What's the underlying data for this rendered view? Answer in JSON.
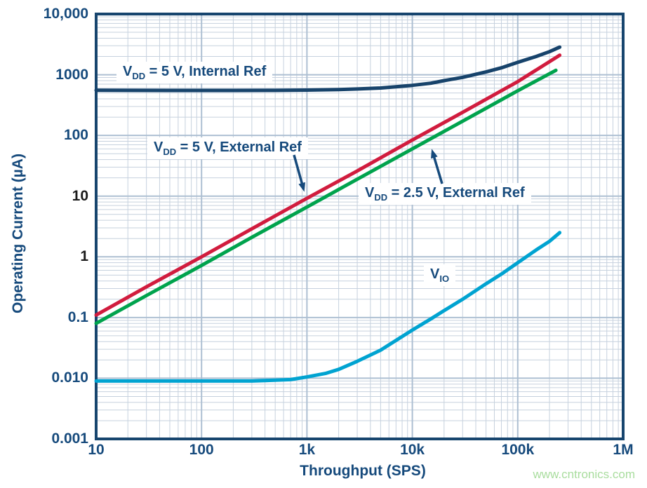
{
  "watermark": "www.cntronics.com",
  "colors": {
    "axis_text": "#164a7c",
    "black_tick": "#1a1a1a",
    "border": "#17456e",
    "grid_minor": "#c6d1de",
    "grid_major": "#adbfd2",
    "arrow": "#164a7c",
    "watermark": "#a9dd9e",
    "series_internal5": "#17436b",
    "series_external5": "#d11c3e",
    "series_external25": "#00a34d",
    "series_vio": "#00a3d1"
  },
  "axes": {
    "x": {
      "title": "Throughput (SPS)",
      "scale": "log",
      "ticks": [
        {
          "label": "10",
          "value": 10
        },
        {
          "label": "100",
          "value": 100
        },
        {
          "label": "1k",
          "value": 1000
        },
        {
          "label": "10k",
          "value": 10000
        },
        {
          "label": "100k",
          "value": 100000
        },
        {
          "label": "1M",
          "value": 1000000
        }
      ]
    },
    "y": {
      "title": "Operating Current (µA)",
      "scale": "log",
      "ticks": [
        {
          "label": "10,000",
          "value": 10000,
          "color": "#164a7c"
        },
        {
          "label": "1000",
          "value": 1000,
          "color": "#164a7c"
        },
        {
          "label": "100",
          "value": 100,
          "color": "#164a7c"
        },
        {
          "label": "10",
          "value": 10,
          "color": "#1a1a1a"
        },
        {
          "label": "1",
          "value": 1,
          "color": "#1a1a1a"
        },
        {
          "label": "0.1",
          "value": 0.1,
          "color": "#164a7c"
        },
        {
          "label": "0.010",
          "value": 0.01,
          "color": "#164a7c"
        },
        {
          "label": "0.001",
          "value": 0.001,
          "color": "#164a7c"
        }
      ]
    }
  },
  "curve_labels": [
    {
      "v": "V",
      "sub": "DD",
      "rest": " = 5 V, Internal Ref"
    },
    {
      "v": "V",
      "sub": "DD",
      "rest": " = 5 V, External Ref"
    },
    {
      "v": "V",
      "sub": "DD",
      "rest": " = 2.5 V, External Ref"
    },
    {
      "v": "V",
      "sub": "IO",
      "rest": ""
    }
  ],
  "chart_data": {
    "type": "line",
    "x_scale": "log",
    "y_scale": "log",
    "xlabel": "Throughput (SPS)",
    "ylabel": "Operating Current (µA)",
    "xlim": [
      10,
      1000000
    ],
    "ylim": [
      0.001,
      10000
    ],
    "grid": true,
    "legend": "inline-annotations",
    "series": [
      {
        "name": "VDD = 5 V, Internal Ref",
        "color": "#17436b",
        "points": [
          [
            10,
            555
          ],
          [
            20,
            552
          ],
          [
            50,
            550
          ],
          [
            100,
            550
          ],
          [
            200,
            550
          ],
          [
            500,
            552
          ],
          [
            1000,
            558
          ],
          [
            2000,
            570
          ],
          [
            3000,
            582
          ],
          [
            5000,
            605
          ],
          [
            7000,
            632
          ],
          [
            10000,
            668
          ],
          [
            15000,
            725
          ],
          [
            20000,
            800
          ],
          [
            30000,
            905
          ],
          [
            50000,
            1110
          ],
          [
            70000,
            1300
          ],
          [
            100000,
            1600
          ],
          [
            150000,
            2000
          ],
          [
            200000,
            2400
          ],
          [
            250000,
            2850
          ]
        ]
      },
      {
        "name": "VDD = 5 V, External Ref",
        "color": "#d11c3e",
        "points": [
          [
            10,
            0.11
          ],
          [
            30,
            0.32
          ],
          [
            100,
            1.0
          ],
          [
            300,
            2.9
          ],
          [
            1000,
            9.2
          ],
          [
            3000,
            26
          ],
          [
            10000,
            84
          ],
          [
            30000,
            240
          ],
          [
            100000,
            770
          ],
          [
            250000,
            2100
          ]
        ]
      },
      {
        "name": "VDD = 2.5 V, External Ref",
        "color": "#00a34d",
        "points": [
          [
            10,
            0.08
          ],
          [
            30,
            0.23
          ],
          [
            100,
            0.72
          ],
          [
            300,
            2.1
          ],
          [
            1000,
            6.6
          ],
          [
            3000,
            19
          ],
          [
            10000,
            60
          ],
          [
            30000,
            172
          ],
          [
            100000,
            545
          ],
          [
            230000,
            1180
          ]
        ]
      },
      {
        "name": "VIO",
        "color": "#00a3d1",
        "points": [
          [
            10,
            0.009
          ],
          [
            100,
            0.009
          ],
          [
            300,
            0.009
          ],
          [
            700,
            0.0095
          ],
          [
            1000,
            0.0105
          ],
          [
            1500,
            0.012
          ],
          [
            2000,
            0.014
          ],
          [
            3000,
            0.019
          ],
          [
            5000,
            0.029
          ],
          [
            7000,
            0.042
          ],
          [
            10000,
            0.062
          ],
          [
            15000,
            0.095
          ],
          [
            20000,
            0.13
          ],
          [
            30000,
            0.2
          ],
          [
            50000,
            0.36
          ],
          [
            70000,
            0.52
          ],
          [
            100000,
            0.8
          ],
          [
            150000,
            1.3
          ],
          [
            200000,
            1.8
          ],
          [
            250000,
            2.5
          ]
        ]
      }
    ]
  }
}
